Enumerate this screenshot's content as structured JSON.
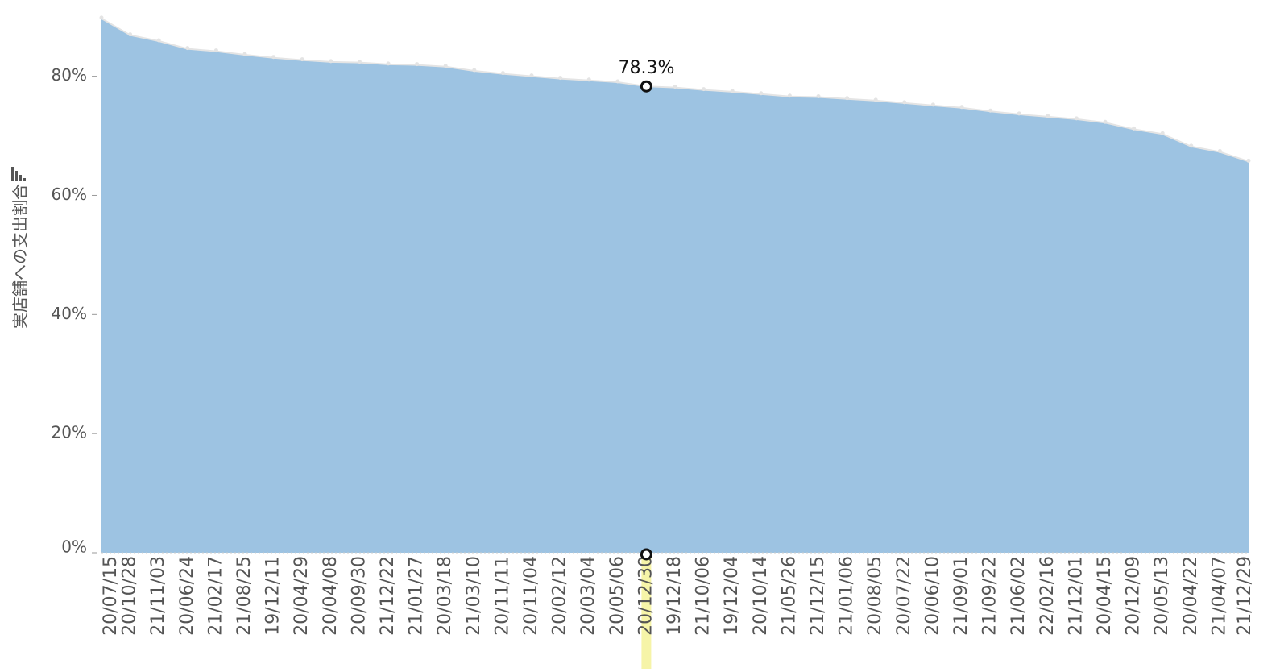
{
  "chart_data": {
    "type": "area",
    "y_label": "実店舗への支出割合",
    "categories": [
      "20/07/15",
      "20/10/28",
      "21/11/03",
      "20/06/24",
      "21/02/17",
      "21/08/25",
      "19/12/11",
      "20/04/29",
      "20/04/08",
      "20/09/30",
      "21/12/22",
      "21/01/27",
      "20/03/18",
      "21/03/10",
      "20/11/11",
      "20/11/04",
      "20/02/12",
      "20/03/04",
      "20/05/06",
      "20/12/30",
      "19/12/18",
      "21/10/06",
      "19/12/04",
      "20/10/14",
      "21/05/26",
      "21/12/15",
      "21/01/06",
      "20/08/05",
      "20/07/22",
      "20/06/10",
      "21/09/01",
      "21/09/22",
      "21/06/02",
      "22/02/16",
      "21/12/01",
      "20/04/15",
      "20/12/09",
      "20/05/13",
      "20/04/22",
      "21/04/07",
      "21/12/29"
    ],
    "values": [
      89.7,
      86.9,
      85.9,
      84.6,
      84.2,
      83.6,
      83.1,
      82.7,
      82.4,
      82.3,
      82.0,
      81.9,
      81.6,
      80.9,
      80.4,
      80.0,
      79.6,
      79.3,
      79.0,
      78.3,
      78.1,
      77.7,
      77.4,
      77.0,
      76.6,
      76.5,
      76.2,
      75.9,
      75.5,
      75.1,
      74.7,
      74.1,
      73.6,
      73.2,
      72.8,
      72.2,
      71.1,
      70.3,
      68.2,
      67.3,
      65.7
    ],
    "value_labels": [
      null,
      null,
      null,
      null,
      null,
      null,
      null,
      null,
      null,
      null,
      null,
      null,
      null,
      null,
      null,
      null,
      null,
      null,
      null,
      "78.3%",
      null,
      null,
      null,
      null,
      null,
      null,
      null,
      null,
      null,
      null,
      null,
      null,
      null,
      null,
      null,
      null,
      null,
      null,
      null,
      null,
      null
    ],
    "highlight_index": 19,
    "color": "#9dc3e2",
    "highlight_color": "#f6f4a8",
    "ylim": [
      0,
      92.8
    ],
    "yticks": [
      {
        "value": 0,
        "label": "0%"
      },
      {
        "value": 20,
        "label": "20%"
      },
      {
        "value": 40,
        "label": "40%"
      },
      {
        "value": 60,
        "label": "60%"
      },
      {
        "value": 80,
        "label": "80%"
      }
    ]
  }
}
